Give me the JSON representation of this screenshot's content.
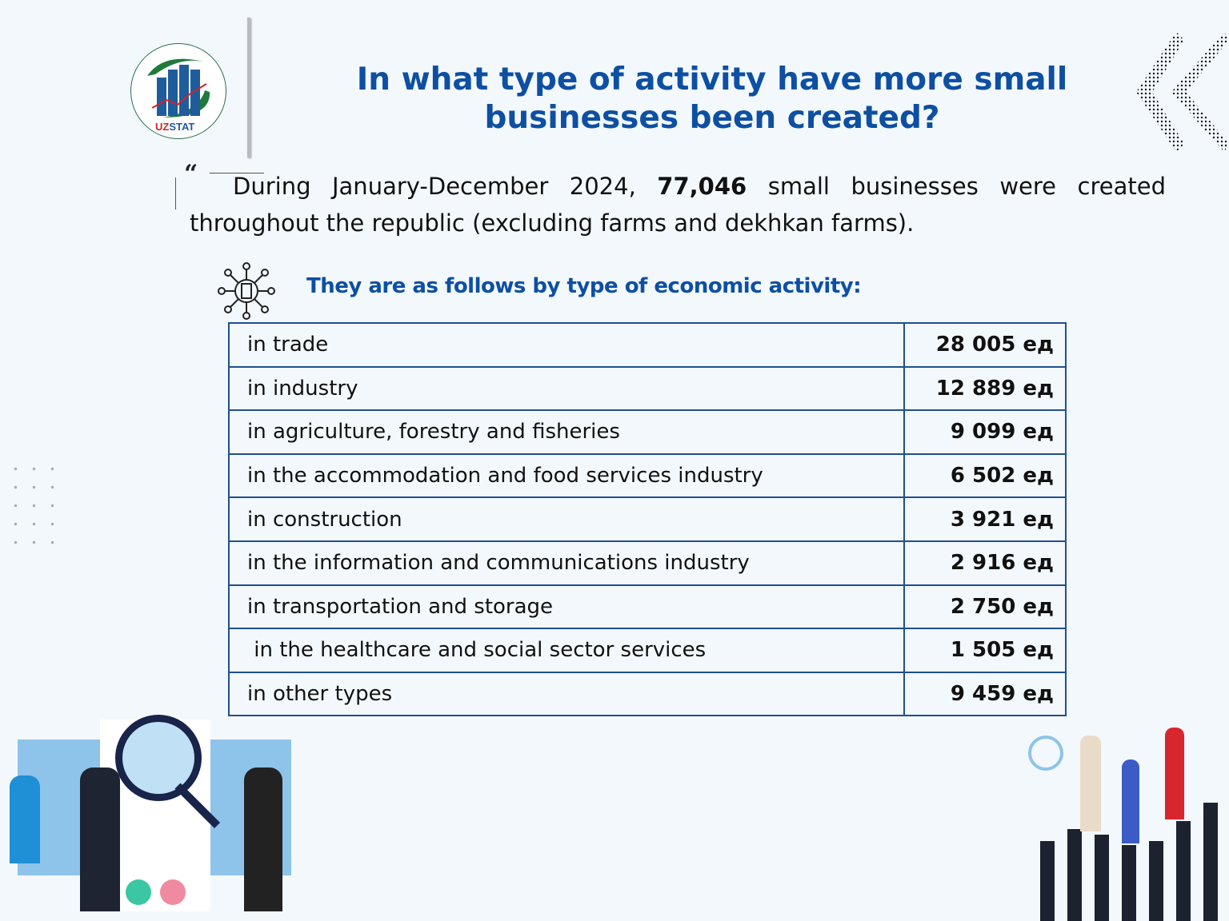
{
  "logo": {
    "text_red": "UZ",
    "text_blue": "STAT",
    "colors": {
      "green": "#1f7a3a",
      "blue": "#1f5c9c",
      "red": "#d2232a"
    }
  },
  "title": "In what type of activity have more small businesses been created?",
  "intro": {
    "before": "During January-December 2024, ",
    "highlight": "77,046",
    "after": " small businesses were created throughout the republic (excluding farms and dekhkan farms)."
  },
  "subtitle": "They are as follows by type of economic activity:",
  "table": {
    "rows": [
      {
        "activity": "in trade",
        "value": "28 005 ед"
      },
      {
        "activity": "in industry",
        "value": "12 889 ед"
      },
      {
        "activity": "in agriculture, forestry and fisheries",
        "value": "9 099 ед"
      },
      {
        "activity": "in the accommodation and food services industry",
        "value": "6 502 ед"
      },
      {
        "activity": "in construction",
        "value": "3 921 ед"
      },
      {
        "activity": "in the information and communications industry",
        "value": "2 916 ед"
      },
      {
        "activity": "in transportation and storage",
        "value": "2 750 ед"
      },
      {
        "activity": " in the healthcare and social sector services",
        "value": "1 505 ед"
      },
      {
        "activity": "in other types",
        "value": "9 459 ед"
      }
    ]
  },
  "colors": {
    "title": "#0d4fa3",
    "table_border": "#1e508c",
    "background": "#f3f8fc"
  }
}
